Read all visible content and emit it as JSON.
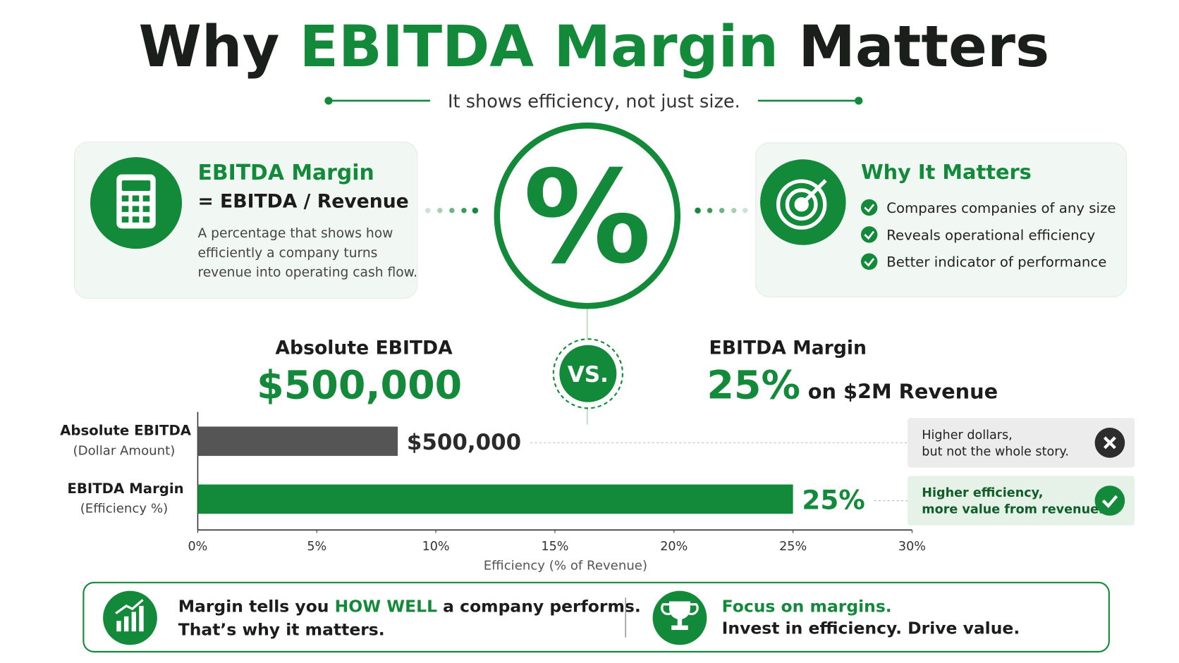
{
  "header": {
    "title": [
      "Why ",
      "EBITDA Margin",
      " Matters"
    ],
    "subtitle": "It shows efficiency, not just size."
  },
  "definition_card": {
    "title": "EBITDA Margin",
    "formula": "= EBITDA / Revenue",
    "description": [
      "A percentage that shows how",
      "efficiently a company turns",
      "revenue into operating cash flow."
    ]
  },
  "center_symbol": "%",
  "reasons_card": {
    "title": "Why It Matters",
    "bullets": [
      "Compares companies of any size",
      "Reveals operational efficiency",
      "Better indicator of performance"
    ]
  },
  "comparison": {
    "left_label": "Absolute EBITDA",
    "left_value": "$500,000",
    "versus": "VS.",
    "right_label": "EBITDA Margin",
    "right_value": "25%",
    "right_note": "on $2M Revenue"
  },
  "chart_data": {
    "type": "hbar",
    "categories": [
      "Absolute EBITDA",
      "EBITDA Margin"
    ],
    "category_notes": [
      "(Dollar Amount)",
      "(Efficiency %)"
    ],
    "values": [
      8.4,
      25
    ],
    "value_labels": [
      null,
      "25%"
    ],
    "dollar_label": "$500,000",
    "colors": [
      "#555555",
      "#138a3a"
    ],
    "xlim": [
      0,
      30
    ],
    "xticks": [
      {
        "value": 0,
        "label": "0%"
      },
      {
        "value": 5,
        "label": "5%"
      },
      {
        "value": 10,
        "label": "10%"
      },
      {
        "value": 15,
        "label": "15%"
      },
      {
        "value": 20,
        "label": "20%"
      },
      {
        "value": 25,
        "label": "25%"
      },
      {
        "value": 30,
        "label": "30%"
      }
    ],
    "xlabel": "Efficiency (% of Revenue)",
    "callouts": [
      [
        "Higher dollars,",
        "but not the whole story."
      ],
      [
        "Higher efficiency,",
        "more value from revenue."
      ]
    ]
  },
  "footer": {
    "left_line1": [
      "Margin tells you ",
      "HOW WELL",
      " a company performs."
    ],
    "left_line2": "That’s why it matters.",
    "right_line1": "Focus on margins.",
    "right_line2": "Invest in efficiency. Drive value."
  }
}
